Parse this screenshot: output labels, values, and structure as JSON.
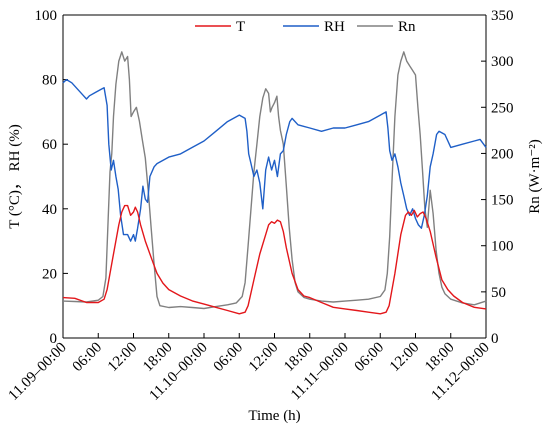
{
  "chart_data": {
    "type": "line",
    "xlabel": "Time (h)",
    "ylabel_left": "T (°C)， RH (%)",
    "ylabel_right": "Rn (W·m⁻²)",
    "ylim_left": [
      0,
      100
    ],
    "ylim_right": [
      0,
      350
    ],
    "xlim_hours": [
      0,
      72
    ],
    "left_ticks": [
      "0",
      "20",
      "40",
      "60",
      "80",
      "100"
    ],
    "right_ticks": [
      "0",
      "50",
      "100",
      "150",
      "200",
      "250",
      "300",
      "350"
    ],
    "x_ticks": [
      {
        "hour": 0,
        "label": "11.09–00:00"
      },
      {
        "hour": 6,
        "label": "06:00"
      },
      {
        "hour": 12,
        "label": "12:00"
      },
      {
        "hour": 18,
        "label": "18:00"
      },
      {
        "hour": 24,
        "label": "11.10–00:00"
      },
      {
        "hour": 30,
        "label": "06:00"
      },
      {
        "hour": 36,
        "label": "12:00"
      },
      {
        "hour": 42,
        "label": "18:00"
      },
      {
        "hour": 48,
        "label": "11.11–00:00"
      },
      {
        "hour": 54,
        "label": "06:00"
      },
      {
        "hour": 60,
        "label": "12:00"
      },
      {
        "hour": 66,
        "label": "18:00"
      },
      {
        "hour": 72,
        "label": "11.12–00:00"
      }
    ],
    "legend": {
      "placement": "top-center"
    },
    "series": [
      {
        "name": "T",
        "color": "#e3171b",
        "axis": "left",
        "points": [
          [
            0,
            12.5
          ],
          [
            2,
            12.3
          ],
          [
            4,
            11
          ],
          [
            6,
            11
          ],
          [
            7,
            12
          ],
          [
            7.5,
            15
          ],
          [
            8.5,
            25
          ],
          [
            9.5,
            35
          ],
          [
            10,
            39
          ],
          [
            10.5,
            41
          ],
          [
            11,
            41
          ],
          [
            11.5,
            38
          ],
          [
            12,
            39
          ],
          [
            12.3,
            40.5
          ],
          [
            12.7,
            39
          ],
          [
            13.2,
            35
          ],
          [
            14,
            30
          ],
          [
            15,
            25
          ],
          [
            16,
            20
          ],
          [
            17,
            17
          ],
          [
            18,
            15
          ],
          [
            20,
            13
          ],
          [
            22,
            11.5
          ],
          [
            24,
            10.5
          ],
          [
            26,
            9.5
          ],
          [
            28,
            8.5
          ],
          [
            30,
            7.5
          ],
          [
            31,
            8
          ],
          [
            31.5,
            10
          ],
          [
            32.5,
            18
          ],
          [
            33.5,
            26
          ],
          [
            34.5,
            32
          ],
          [
            35,
            35
          ],
          [
            35.5,
            36
          ],
          [
            36,
            35.5
          ],
          [
            36.5,
            36.5
          ],
          [
            37,
            36
          ],
          [
            37.5,
            33
          ],
          [
            38,
            28
          ],
          [
            39,
            20
          ],
          [
            40,
            15
          ],
          [
            41,
            13
          ],
          [
            42,
            12.5
          ],
          [
            44,
            11
          ],
          [
            46,
            9.5
          ],
          [
            48,
            9
          ],
          [
            50,
            8.5
          ],
          [
            52,
            8
          ],
          [
            54,
            7.5
          ],
          [
            55,
            8
          ],
          [
            55.5,
            10
          ],
          [
            56.5,
            20
          ],
          [
            57.5,
            32
          ],
          [
            58.3,
            38
          ],
          [
            58.8,
            39
          ],
          [
            59.3,
            38
          ],
          [
            59.8,
            39.5
          ],
          [
            60.3,
            37.5
          ],
          [
            60.8,
            38.5
          ],
          [
            61.3,
            39
          ],
          [
            61.8,
            37
          ],
          [
            62.5,
            33
          ],
          [
            63.5,
            25
          ],
          [
            64.5,
            18
          ],
          [
            65.5,
            15
          ],
          [
            66.5,
            13
          ],
          [
            68,
            11
          ],
          [
            70,
            9.5
          ],
          [
            72,
            9
          ]
        ]
      },
      {
        "name": "RH",
        "color": "#1f5fc7",
        "axis": "left",
        "points": [
          [
            0,
            79
          ],
          [
            0.6,
            80
          ],
          [
            1.5,
            79
          ],
          [
            2.5,
            77
          ],
          [
            3.5,
            75
          ],
          [
            4,
            74
          ],
          [
            4.5,
            75
          ],
          [
            5.5,
            76
          ],
          [
            6.5,
            77
          ],
          [
            7,
            77.5
          ],
          [
            7.5,
            72
          ],
          [
            7.8,
            60
          ],
          [
            8.2,
            52
          ],
          [
            8.6,
            55
          ],
          [
            9,
            50
          ],
          [
            9.4,
            46
          ],
          [
            9.8,
            38
          ],
          [
            10.3,
            32
          ],
          [
            11,
            32
          ],
          [
            11.5,
            30
          ],
          [
            12,
            32
          ],
          [
            12.3,
            30
          ],
          [
            12.7,
            34
          ],
          [
            13.2,
            40
          ],
          [
            13.6,
            47
          ],
          [
            14,
            43
          ],
          [
            14.4,
            42
          ],
          [
            14.8,
            50
          ],
          [
            15.5,
            53
          ],
          [
            16,
            54
          ],
          [
            18,
            56
          ],
          [
            20,
            57
          ],
          [
            22,
            59
          ],
          [
            24,
            61
          ],
          [
            26,
            64
          ],
          [
            28,
            67
          ],
          [
            30,
            69
          ],
          [
            31,
            68
          ],
          [
            31.3,
            64
          ],
          [
            31.6,
            57
          ],
          [
            32,
            54
          ],
          [
            32.5,
            50
          ],
          [
            33,
            52
          ],
          [
            33.5,
            48
          ],
          [
            34,
            40
          ],
          [
            34.5,
            52
          ],
          [
            35,
            56
          ],
          [
            35.5,
            52
          ],
          [
            36,
            55
          ],
          [
            36.5,
            50
          ],
          [
            37,
            57
          ],
          [
            37.5,
            58
          ],
          [
            38,
            63
          ],
          [
            38.6,
            67
          ],
          [
            39,
            68
          ],
          [
            40,
            66
          ],
          [
            42,
            65
          ],
          [
            44,
            64
          ],
          [
            46,
            65
          ],
          [
            48,
            65
          ],
          [
            50,
            66
          ],
          [
            52,
            67
          ],
          [
            54,
            69
          ],
          [
            55,
            70
          ],
          [
            55.3,
            65
          ],
          [
            55.6,
            58
          ],
          [
            56,
            55
          ],
          [
            56.5,
            57
          ],
          [
            57,
            53
          ],
          [
            57.5,
            48
          ],
          [
            58,
            44
          ],
          [
            58.5,
            40
          ],
          [
            59,
            38
          ],
          [
            59.5,
            40
          ],
          [
            60,
            37
          ],
          [
            60.5,
            35
          ],
          [
            61,
            34
          ],
          [
            61.5,
            38
          ],
          [
            62,
            44
          ],
          [
            62.5,
            53
          ],
          [
            63,
            57
          ],
          [
            63.6,
            63
          ],
          [
            64,
            64
          ],
          [
            65,
            63
          ],
          [
            66,
            59
          ],
          [
            68,
            60
          ],
          [
            70,
            61
          ],
          [
            71,
            61.5
          ],
          [
            72,
            59
          ]
        ]
      },
      {
        "name": "Rn",
        "color": "#808080",
        "axis": "right",
        "points": [
          [
            0,
            40
          ],
          [
            2,
            39.5
          ],
          [
            4,
            39
          ],
          [
            6,
            41
          ],
          [
            6.8,
            45
          ],
          [
            7.3,
            65
          ],
          [
            7.7,
            130
          ],
          [
            8,
            180
          ],
          [
            8.3,
            200
          ],
          [
            8.6,
            240
          ],
          [
            9,
            275
          ],
          [
            9.5,
            300
          ],
          [
            10,
            310
          ],
          [
            10.5,
            300
          ],
          [
            11,
            305
          ],
          [
            11.3,
            280
          ],
          [
            11.6,
            240
          ],
          [
            12,
            245
          ],
          [
            12.5,
            250
          ],
          [
            13,
            235
          ],
          [
            13.5,
            215
          ],
          [
            14,
            195
          ],
          [
            14.5,
            160
          ],
          [
            15,
            120
          ],
          [
            15.5,
            80
          ],
          [
            16,
            45
          ],
          [
            16.5,
            35
          ],
          [
            18,
            33
          ],
          [
            20,
            34
          ],
          [
            22,
            33
          ],
          [
            24,
            32
          ],
          [
            26,
            34
          ],
          [
            28,
            36
          ],
          [
            29.5,
            38
          ],
          [
            30.5,
            45
          ],
          [
            31,
            60
          ],
          [
            31.5,
            100
          ],
          [
            32,
            140
          ],
          [
            32.5,
            180
          ],
          [
            33,
            210
          ],
          [
            33.5,
            240
          ],
          [
            34,
            260
          ],
          [
            34.5,
            270
          ],
          [
            35,
            265
          ],
          [
            35.3,
            245
          ],
          [
            35.6,
            250
          ],
          [
            36,
            255
          ],
          [
            36.4,
            262
          ],
          [
            36.7,
            240
          ],
          [
            37,
            225
          ],
          [
            37.5,
            210
          ],
          [
            38,
            165
          ],
          [
            38.5,
            120
          ],
          [
            39,
            85
          ],
          [
            39.5,
            60
          ],
          [
            40,
            50
          ],
          [
            41,
            44
          ],
          [
            42,
            42
          ],
          [
            44,
            40
          ],
          [
            46,
            39
          ],
          [
            48,
            40
          ],
          [
            50,
            41
          ],
          [
            52,
            42
          ],
          [
            54,
            45
          ],
          [
            54.8,
            52
          ],
          [
            55.2,
            70
          ],
          [
            55.6,
            110
          ],
          [
            56,
            170
          ],
          [
            56.5,
            240
          ],
          [
            57,
            285
          ],
          [
            57.5,
            300
          ],
          [
            58,
            310
          ],
          [
            58.5,
            300
          ],
          [
            59,
            295
          ],
          [
            59.5,
            290
          ],
          [
            60,
            285
          ],
          [
            60.4,
            250
          ],
          [
            60.8,
            220
          ],
          [
            61.2,
            180
          ],
          [
            61.6,
            140
          ],
          [
            62,
            120
          ],
          [
            62.5,
            160
          ],
          [
            63,
            135
          ],
          [
            63.5,
            95
          ],
          [
            64,
            70
          ],
          [
            64.5,
            55
          ],
          [
            65,
            48
          ],
          [
            66,
            42
          ],
          [
            68,
            38
          ],
          [
            70,
            36
          ],
          [
            72,
            40
          ]
        ]
      }
    ]
  }
}
